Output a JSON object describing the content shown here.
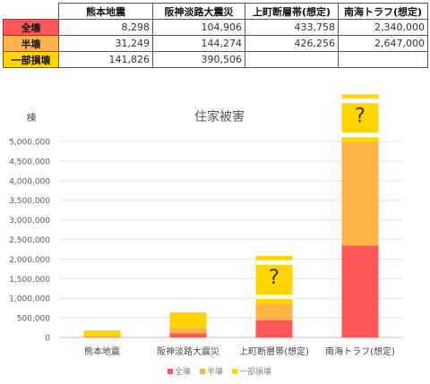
{
  "table": {
    "columns": [
      "熊本地震",
      "阪神淡路大震災",
      "上町断層帯(想定)",
      "南海トラフ(想定)"
    ],
    "rows": [
      {
        "label": "全壊",
        "color": "#FF5757",
        "values": [
          "8,298",
          "104,906",
          "433,758",
          "2,340,000"
        ]
      },
      {
        "label": "半壊",
        "color": "#FFB347",
        "values": [
          "31,249",
          "144,274",
          "426,256",
          "2,647,000"
        ]
      },
      {
        "label": "一部損壊",
        "color": "#FFD500",
        "values": [
          "141,826",
          "390,506",
          "",
          ""
        ]
      }
    ]
  },
  "chart_data": {
    "type": "bar",
    "stacked": true,
    "title": "住家被害",
    "ylabel": "棟",
    "xlabel": "",
    "categories": [
      "熊本地震",
      "阪神淡路大震災",
      "上町断層帯(想定)",
      "南海トラフ(想定)"
    ],
    "ylim": [
      0,
      5000000
    ],
    "yticks": [
      0,
      500000,
      1000000,
      1500000,
      2000000,
      2500000,
      3000000,
      3500000,
      4000000,
      4500000,
      5000000
    ],
    "ytick_labels": [
      "0",
      "500,000",
      "1,000,000",
      "1,500,000",
      "2,000,000",
      "2,500,000",
      "3,000,000",
      "3,500,000",
      "4,000,000",
      "4,500,000",
      "5,000,000"
    ],
    "grid": true,
    "legend_position": "bottom",
    "series": [
      {
        "name": "全壊",
        "color": "#FF5757",
        "values": [
          8298,
          104906,
          433758,
          2340000
        ]
      },
      {
        "name": "半壊",
        "color": "#FFB347",
        "values": [
          31249,
          144274,
          426256,
          2647000
        ]
      },
      {
        "name": "一部損壊",
        "color": "#FFD500",
        "values": [
          141826,
          390506,
          null,
          null
        ]
      }
    ],
    "unknown_marker": "?",
    "unknown_top": [
      null,
      null,
      2080000,
      6200000
    ]
  }
}
